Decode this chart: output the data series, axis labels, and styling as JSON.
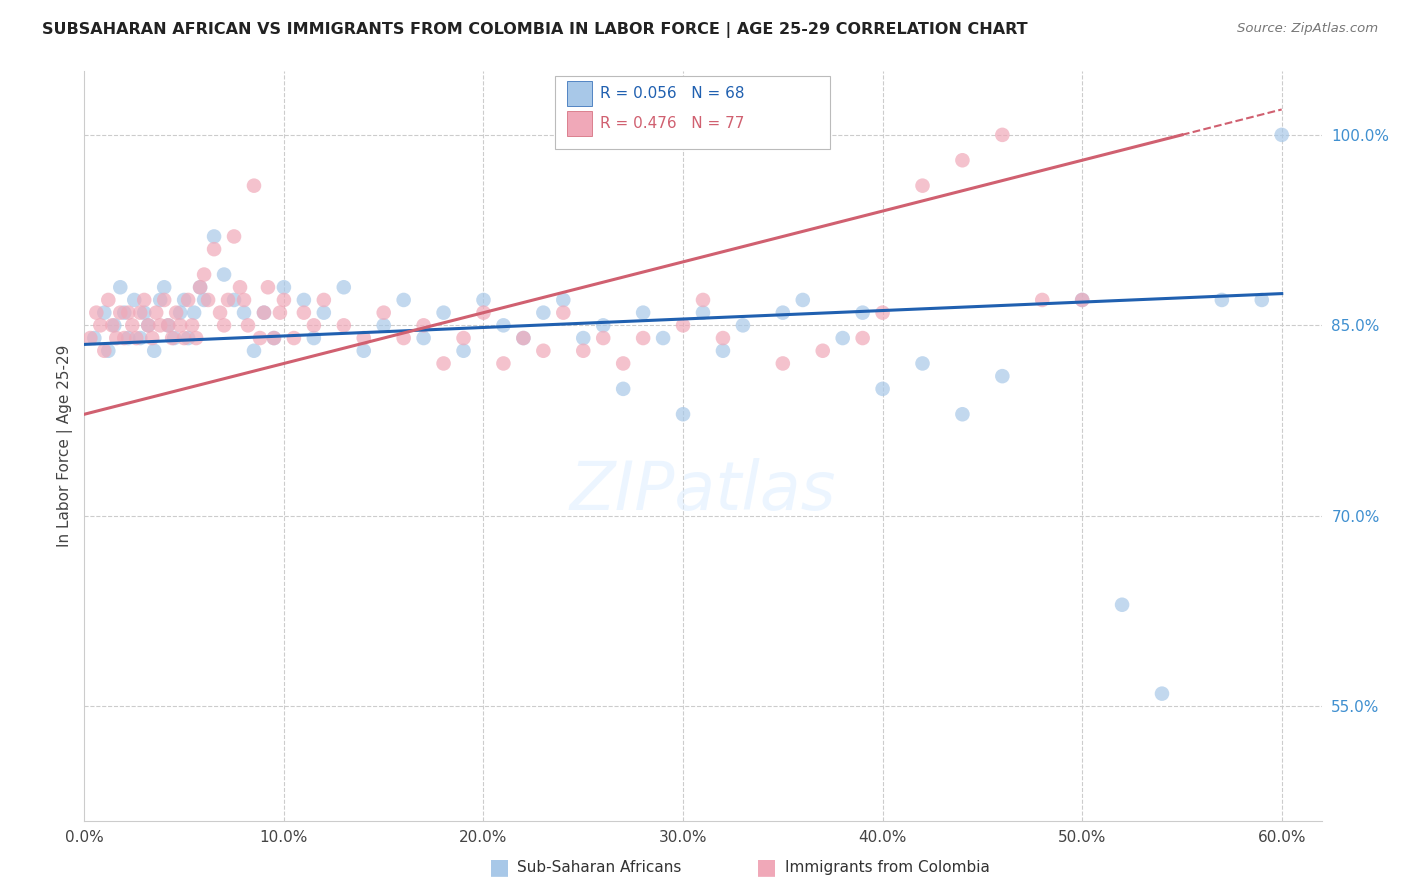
{
  "title": "SUBSAHARAN AFRICAN VS IMMIGRANTS FROM COLOMBIA IN LABOR FORCE | AGE 25-29 CORRELATION CHART",
  "source": "Source: ZipAtlas.com",
  "ylabel": "In Labor Force | Age 25-29",
  "xlabel_ticks": [
    "0.0%",
    "10.0%",
    "20.0%",
    "30.0%",
    "40.0%",
    "50.0%",
    "60.0%"
  ],
  "ylabel_ticks": [
    "55.0%",
    "70.0%",
    "85.0%",
    "100.0%"
  ],
  "xlim": [
    0.0,
    0.62
  ],
  "ylim": [
    0.46,
    1.05
  ],
  "ytick_positions": [
    0.55,
    0.7,
    0.85,
    1.0
  ],
  "xtick_positions": [
    0.0,
    0.1,
    0.2,
    0.3,
    0.4,
    0.5,
    0.6
  ],
  "blue_R": 0.056,
  "blue_N": 68,
  "pink_R": 0.476,
  "pink_N": 77,
  "blue_scatter_color": "#A8C8E8",
  "pink_scatter_color": "#F0A8B8",
  "blue_line_color": "#2060B0",
  "pink_line_color": "#D06070",
  "blue_tick_color": "#4090D0",
  "watermark": "ZIPatlas",
  "blue_scatter_x": [
    0.005,
    0.01,
    0.012,
    0.015,
    0.018,
    0.02,
    0.022,
    0.025,
    0.028,
    0.03,
    0.032,
    0.035,
    0.038,
    0.04,
    0.042,
    0.045,
    0.048,
    0.05,
    0.052,
    0.055,
    0.058,
    0.06,
    0.065,
    0.07,
    0.075,
    0.08,
    0.085,
    0.09,
    0.095,
    0.1,
    0.11,
    0.115,
    0.12,
    0.13,
    0.14,
    0.15,
    0.16,
    0.17,
    0.18,
    0.19,
    0.2,
    0.21,
    0.22,
    0.23,
    0.24,
    0.25,
    0.26,
    0.27,
    0.28,
    0.29,
    0.3,
    0.31,
    0.32,
    0.33,
    0.35,
    0.36,
    0.38,
    0.39,
    0.4,
    0.42,
    0.44,
    0.46,
    0.5,
    0.52,
    0.54,
    0.57,
    0.59,
    0.6
  ],
  "blue_scatter_y": [
    0.84,
    0.86,
    0.83,
    0.85,
    0.88,
    0.86,
    0.84,
    0.87,
    0.84,
    0.86,
    0.85,
    0.83,
    0.87,
    0.88,
    0.85,
    0.84,
    0.86,
    0.87,
    0.84,
    0.86,
    0.88,
    0.87,
    0.92,
    0.89,
    0.87,
    0.86,
    0.83,
    0.86,
    0.84,
    0.88,
    0.87,
    0.84,
    0.86,
    0.88,
    0.83,
    0.85,
    0.87,
    0.84,
    0.86,
    0.83,
    0.87,
    0.85,
    0.84,
    0.86,
    0.87,
    0.84,
    0.85,
    0.8,
    0.86,
    0.84,
    0.78,
    0.86,
    0.83,
    0.85,
    0.86,
    0.87,
    0.84,
    0.86,
    0.8,
    0.82,
    0.78,
    0.81,
    0.87,
    0.63,
    0.56,
    0.87,
    0.87,
    1.0
  ],
  "pink_scatter_x": [
    0.003,
    0.006,
    0.008,
    0.01,
    0.012,
    0.014,
    0.016,
    0.018,
    0.02,
    0.022,
    0.024,
    0.026,
    0.028,
    0.03,
    0.032,
    0.034,
    0.036,
    0.038,
    0.04,
    0.042,
    0.044,
    0.046,
    0.048,
    0.05,
    0.052,
    0.054,
    0.056,
    0.058,
    0.06,
    0.062,
    0.065,
    0.068,
    0.07,
    0.072,
    0.075,
    0.078,
    0.08,
    0.082,
    0.085,
    0.088,
    0.09,
    0.092,
    0.095,
    0.098,
    0.1,
    0.105,
    0.11,
    0.115,
    0.12,
    0.13,
    0.14,
    0.15,
    0.16,
    0.17,
    0.18,
    0.19,
    0.2,
    0.21,
    0.22,
    0.23,
    0.24,
    0.25,
    0.26,
    0.27,
    0.28,
    0.3,
    0.31,
    0.32,
    0.35,
    0.37,
    0.39,
    0.4,
    0.42,
    0.44,
    0.46,
    0.48,
    0.5
  ],
  "pink_scatter_y": [
    0.84,
    0.86,
    0.85,
    0.83,
    0.87,
    0.85,
    0.84,
    0.86,
    0.84,
    0.86,
    0.85,
    0.84,
    0.86,
    0.87,
    0.85,
    0.84,
    0.86,
    0.85,
    0.87,
    0.85,
    0.84,
    0.86,
    0.85,
    0.84,
    0.87,
    0.85,
    0.84,
    0.88,
    0.89,
    0.87,
    0.91,
    0.86,
    0.85,
    0.87,
    0.92,
    0.88,
    0.87,
    0.85,
    0.96,
    0.84,
    0.86,
    0.88,
    0.84,
    0.86,
    0.87,
    0.84,
    0.86,
    0.85,
    0.87,
    0.85,
    0.84,
    0.86,
    0.84,
    0.85,
    0.82,
    0.84,
    0.86,
    0.82,
    0.84,
    0.83,
    0.86,
    0.83,
    0.84,
    0.82,
    0.84,
    0.85,
    0.87,
    0.84,
    0.82,
    0.83,
    0.84,
    0.86,
    0.96,
    0.98,
    1.0,
    0.87,
    0.87
  ]
}
